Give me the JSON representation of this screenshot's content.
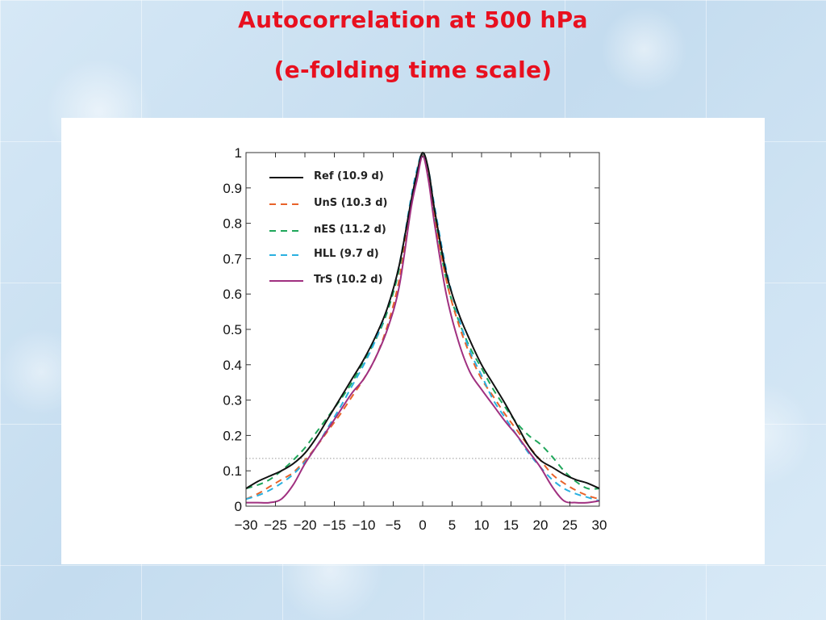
{
  "slide": {
    "title_line1": "Autocorrelation at 500 hPa",
    "title_line2": "(e-folding time scale)",
    "title_color": "#e8101f"
  },
  "chart_data": {
    "type": "line",
    "title": "",
    "xlabel": "",
    "ylabel": "",
    "xlim": [
      -30,
      30
    ],
    "ylim": [
      0,
      1
    ],
    "x_ticks": [
      -30,
      -25,
      -20,
      -15,
      -10,
      -5,
      0,
      5,
      10,
      15,
      20,
      25,
      30
    ],
    "x_tick_labels": [
      "−30",
      "−25",
      "−20",
      "−15",
      "−10",
      "−5",
      "0",
      "5",
      "10",
      "15",
      "20",
      "25",
      "30"
    ],
    "y_ticks": [
      0,
      0.1,
      0.2,
      0.3,
      0.4,
      0.5,
      0.6,
      0.7,
      0.8,
      0.9,
      1
    ],
    "y_tick_labels": [
      "0",
      "0.1",
      "0.2",
      "0.3",
      "0.4",
      "0.5",
      "0.6",
      "0.7",
      "0.8",
      "0.9",
      "1"
    ],
    "grid": false,
    "legend_position": "top-left",
    "reference_line": {
      "y": 0.135,
      "style": "dotted",
      "color": "#999999"
    },
    "x": [
      -30,
      -28,
      -26,
      -24,
      -22,
      -20,
      -18,
      -16,
      -14,
      -12,
      -10,
      -8,
      -6,
      -4,
      -2,
      -1,
      0,
      1,
      2,
      4,
      6,
      8,
      10,
      12,
      14,
      16,
      18,
      20,
      22,
      24,
      26,
      28,
      30
    ],
    "series": [
      {
        "name": "Ref (10.9 d)",
        "color": "#111111",
        "dash": "solid",
        "values": [
          0.05,
          0.07,
          0.085,
          0.1,
          0.12,
          0.15,
          0.195,
          0.25,
          0.305,
          0.36,
          0.415,
          0.48,
          0.56,
          0.68,
          0.86,
          0.94,
          1.0,
          0.95,
          0.84,
          0.66,
          0.55,
          0.47,
          0.4,
          0.345,
          0.29,
          0.23,
          0.17,
          0.13,
          0.11,
          0.09,
          0.075,
          0.065,
          0.05
        ]
      },
      {
        "name": "UnS (10.3 d)",
        "color": "#e8632a",
        "dash": "dashed",
        "values": [
          0.02,
          0.035,
          0.055,
          0.075,
          0.095,
          0.13,
          0.17,
          0.215,
          0.26,
          0.31,
          0.36,
          0.42,
          0.51,
          0.64,
          0.85,
          0.93,
          0.995,
          0.93,
          0.82,
          0.64,
          0.52,
          0.43,
          0.36,
          0.31,
          0.26,
          0.215,
          0.17,
          0.13,
          0.09,
          0.065,
          0.045,
          0.03,
          0.02
        ]
      },
      {
        "name": "nES (11.2 d)",
        "color": "#1fa65a",
        "dash": "dashed",
        "values": [
          0.05,
          0.06,
          0.075,
          0.1,
          0.13,
          0.165,
          0.21,
          0.255,
          0.3,
          0.35,
          0.41,
          0.47,
          0.55,
          0.67,
          0.86,
          0.94,
          1.0,
          0.94,
          0.83,
          0.64,
          0.53,
          0.45,
          0.39,
          0.33,
          0.28,
          0.235,
          0.2,
          0.175,
          0.14,
          0.1,
          0.07,
          0.05,
          0.05
        ]
      },
      {
        "name": "HLL (9.7 d)",
        "color": "#2ab0e0",
        "dash": "dashed",
        "values": [
          0.02,
          0.03,
          0.045,
          0.065,
          0.09,
          0.125,
          0.17,
          0.225,
          0.28,
          0.34,
          0.4,
          0.47,
          0.56,
          0.68,
          0.87,
          0.95,
          1.0,
          0.95,
          0.85,
          0.67,
          0.54,
          0.44,
          0.37,
          0.3,
          0.25,
          0.2,
          0.15,
          0.11,
          0.075,
          0.05,
          0.035,
          0.025,
          0.015
        ]
      },
      {
        "name": "TrS (10.2 d)",
        "color": "#a03080",
        "dash": "solid",
        "values": [
          0.01,
          0.01,
          0.01,
          0.02,
          0.06,
          0.12,
          0.17,
          0.22,
          0.27,
          0.32,
          0.36,
          0.42,
          0.5,
          0.62,
          0.84,
          0.92,
          0.99,
          0.92,
          0.8,
          0.6,
          0.47,
          0.38,
          0.33,
          0.285,
          0.24,
          0.2,
          0.155,
          0.11,
          0.055,
          0.015,
          0.01,
          0.01,
          0.015
        ]
      }
    ]
  }
}
